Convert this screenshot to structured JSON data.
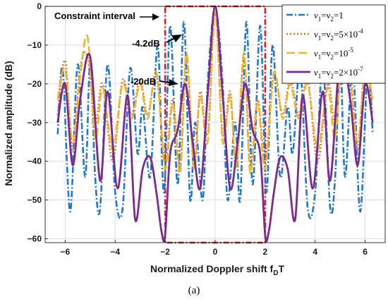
{
  "chart_data": {
    "type": "line",
    "xlabel": "Normalized Doppler shift f",
    "xlabel_sub": "D",
    "xlabel_suffix": "T",
    "ylabel": "Normalized amplitude (dB)",
    "xlim": [
      -6.8,
      6.8
    ],
    "ylim": [
      -61,
      0
    ],
    "x_ticks": [
      -6,
      -4,
      -2,
      0,
      2,
      4,
      6
    ],
    "y_ticks": [
      0,
      -10,
      -20,
      -30,
      -40,
      -50,
      -60
    ],
    "grid": true,
    "legend_position": "top-right",
    "series": [
      {
        "name": "ν1=ν2=1",
        "legend": {
          "a": "ν",
          "asub": "1",
          "eq1": "=ν",
          "bsub": "2",
          "rhs": "=1"
        },
        "color": "#1f77d0",
        "dash": "9,3,2,3",
        "width": 2.6,
        "x": [
          -6.3,
          -6.1,
          -5.8,
          -5.5,
          -5.2,
          -5.0,
          -4.8,
          -4.6,
          -4.3,
          -4.0,
          -3.7,
          -3.4,
          -3.1,
          -2.9,
          -2.6,
          -2.3,
          -2.05,
          -1.8,
          -1.5,
          -1.25,
          -1.0,
          -0.8,
          -0.5,
          -0.3,
          0,
          0.3,
          0.5,
          0.8,
          1.0,
          1.25,
          1.5,
          1.8,
          2.05,
          2.3,
          2.6,
          2.9,
          3.1,
          3.4,
          3.7,
          4.0,
          4.3,
          4.6,
          4.8,
          5.0,
          5.2,
          5.5,
          5.8,
          6.1,
          6.3
        ],
        "y": [
          -33,
          -16,
          -53,
          -15,
          -44,
          -14,
          -44,
          -52,
          -15,
          -48,
          -52,
          -16,
          -38,
          -26,
          -44,
          -10,
          -48,
          -5,
          -46,
          -4,
          -50,
          -30,
          -50,
          -20,
          0,
          -20,
          -50,
          -30,
          -50,
          -4,
          -46,
          -5,
          -48,
          -10,
          -44,
          -26,
          -38,
          -16,
          -52,
          -48,
          -15,
          -52,
          -44,
          -14,
          -44,
          -15,
          -53,
          -16,
          -33
        ]
      },
      {
        "name": "ν1=ν2=5×10^-4",
        "legend": {
          "a": "ν",
          "asub": "1",
          "eq1": "=ν",
          "bsub": "2",
          "rhs": "=5×10",
          "sup": "-4"
        },
        "color": "#e36b2c",
        "dash": "2,3",
        "width": 2.6,
        "x": [
          -6.3,
          -6.0,
          -5.7,
          -5.4,
          -5.1,
          -4.8,
          -4.5,
          -4.1,
          -3.7,
          -3.35,
          -3.0,
          -2.7,
          -2.35,
          -2.0,
          -1.7,
          -1.4,
          -1.15,
          -0.85,
          -0.6,
          -0.3,
          0,
          0.3,
          0.6,
          0.85,
          1.15,
          1.4,
          1.7,
          2.0,
          2.35,
          2.7,
          3.0,
          3.35,
          3.7,
          4.1,
          4.5,
          4.8,
          5.1,
          5.4,
          5.7,
          6.0,
          6.3
        ],
        "y": [
          -28,
          -14,
          -37,
          -16,
          -13,
          -30,
          -20,
          -40,
          -19,
          -28,
          -19,
          -28,
          -18,
          -40,
          -24,
          -41,
          -13,
          -41,
          -22,
          -33,
          -1,
          -33,
          -22,
          -41,
          -13,
          -41,
          -24,
          -40,
          -18,
          -28,
          -19,
          -28,
          -19,
          -40,
          -20,
          -30,
          -13,
          -16,
          -37,
          -14,
          -28
        ]
      },
      {
        "name": "ν1=ν2=10^-5",
        "legend": {
          "a": "ν",
          "asub": "1",
          "eq1": "=ν",
          "bsub": "2",
          "rhs": "=10",
          "sup": "-5"
        },
        "color": "#f0b429",
        "dash": "12,5",
        "width": 2.6,
        "x": [
          -6.3,
          -6.0,
          -5.7,
          -5.4,
          -5.1,
          -4.8,
          -4.5,
          -4.1,
          -3.7,
          -3.35,
          -3.0,
          -2.7,
          -2.35,
          -2.0,
          -1.7,
          -1.4,
          -1.15,
          -0.85,
          -0.6,
          -0.3,
          0,
          0.3,
          0.6,
          0.85,
          1.15,
          1.4,
          1.7,
          2.0,
          2.35,
          2.7,
          3.0,
          3.35,
          3.7,
          4.1,
          4.5,
          4.8,
          5.1,
          5.4,
          5.7,
          6.0,
          6.3
        ],
        "y": [
          -24,
          -16,
          -35,
          -18,
          -8,
          -34,
          -21,
          -37,
          -20,
          -29,
          -20,
          -29,
          -17,
          -42,
          -25,
          -43,
          -12,
          -42,
          -23,
          -35,
          -1,
          -35,
          -23,
          -42,
          -12,
          -43,
          -25,
          -42,
          -17,
          -29,
          -20,
          -29,
          -20,
          -37,
          -21,
          -34,
          -8,
          -18,
          -35,
          -16,
          -24
        ]
      },
      {
        "name": "ν1=ν2=2×10^-7",
        "legend": {
          "a": "ν",
          "asub": "1",
          "eq1": "=ν",
          "bsub": "2",
          "rhs": "=2×10",
          "sup": "-7"
        },
        "color": "#7b2a8e",
        "dash": "",
        "width": 2.8,
        "x": [
          -6.3,
          -6.0,
          -5.7,
          -5.4,
          -5.0,
          -4.6,
          -4.3,
          -3.9,
          -3.5,
          -3.2,
          -2.9,
          -2.6,
          -2.35,
          -2.15,
          -2.0,
          -1.8,
          -1.5,
          -1.2,
          -0.9,
          -0.6,
          -0.3,
          0,
          0.3,
          0.6,
          0.9,
          1.2,
          1.5,
          1.8,
          2.0,
          2.15,
          2.35,
          2.6,
          2.9,
          3.2,
          3.5,
          3.9,
          4.3,
          4.6,
          5.0,
          5.4,
          5.7,
          6.0,
          6.3
        ],
        "y": [
          -30,
          -20,
          -41,
          -24,
          -13,
          -45,
          -22,
          -47,
          -23,
          -55,
          -42,
          -39,
          -48,
          -58,
          -59,
          -38,
          -32,
          -20,
          -35,
          -47,
          -23,
          0,
          -23,
          -47,
          -35,
          -20,
          -32,
          -38,
          -59,
          -58,
          -48,
          -39,
          -42,
          -55,
          -23,
          -47,
          -22,
          -45,
          -13,
          -24,
          -41,
          -20,
          -30
        ]
      }
    ],
    "annotations": [
      {
        "text": "Constraint interval"
      },
      {
        "text": "-4.2dB"
      },
      {
        "text": "-20dB"
      }
    ],
    "constraint_interval": [
      -2,
      2
    ],
    "constraint_color": "#e8141c"
  },
  "caption": "(a)"
}
